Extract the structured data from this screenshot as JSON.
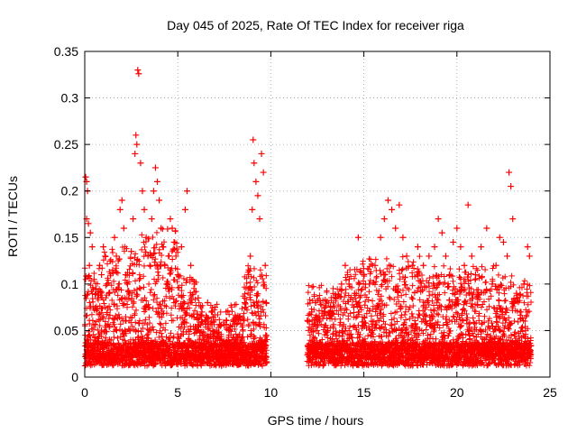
{
  "chart_data": {
    "type": "scatter",
    "title": "Day 045 of 2025, Rate Of TEC Index for receiver riga",
    "xlabel": "GPS time / hours",
    "ylabel": "ROTI / TECUs",
    "xlim": [
      0,
      25
    ],
    "ylim": [
      0,
      0.35
    ],
    "xticks": [
      0,
      5,
      10,
      15,
      20,
      25
    ],
    "xtick_labels": [
      "0",
      "5",
      "10",
      "15",
      "20",
      "25"
    ],
    "yticks": [
      0,
      0.05,
      0.1,
      0.15,
      0.2,
      0.25,
      0.3,
      0.35
    ],
    "ytick_labels": [
      "0",
      "0.05",
      "0.1",
      "0.15",
      "0.2",
      "0.25",
      "0.3",
      "0.35"
    ],
    "grid": true,
    "marker": "+",
    "color": "#ff0000",
    "series": [
      {
        "points": [
          [
            0.05,
            0.215
          ],
          [
            0.1,
            0.21
          ],
          [
            0.15,
            0.2
          ],
          [
            0.1,
            0.17
          ],
          [
            0.2,
            0.165
          ],
          [
            0.3,
            0.155
          ],
          [
            0.4,
            0.14
          ],
          [
            0.25,
            0.12
          ],
          [
            0.5,
            0.105
          ],
          [
            0.6,
            0.095
          ],
          [
            0.7,
            0.085
          ],
          [
            0.8,
            0.12
          ],
          [
            0.9,
            0.11
          ],
          [
            1.0,
            0.14
          ],
          [
            1.1,
            0.13
          ],
          [
            1.2,
            0.1
          ],
          [
            1.3,
            0.09
          ],
          [
            1.5,
            0.115
          ],
          [
            1.6,
            0.15
          ],
          [
            1.7,
            0.13
          ],
          [
            1.8,
            0.125
          ],
          [
            1.9,
            0.18
          ],
          [
            2.0,
            0.19
          ],
          [
            2.1,
            0.16
          ],
          [
            2.2,
            0.11
          ],
          [
            2.3,
            0.1
          ],
          [
            2.4,
            0.09
          ],
          [
            2.5,
            0.135
          ],
          [
            2.6,
            0.17
          ],
          [
            2.7,
            0.24
          ],
          [
            2.75,
            0.26
          ],
          [
            2.8,
            0.25
          ],
          [
            2.85,
            0.33
          ],
          [
            2.9,
            0.326
          ],
          [
            3.0,
            0.23
          ],
          [
            3.1,
            0.2
          ],
          [
            3.2,
            0.18
          ],
          [
            3.3,
            0.15
          ],
          [
            3.4,
            0.13
          ],
          [
            3.5,
            0.12
          ],
          [
            3.6,
            0.17
          ],
          [
            3.7,
            0.2
          ],
          [
            3.8,
            0.225
          ],
          [
            3.9,
            0.21
          ],
          [
            4.0,
            0.19
          ],
          [
            4.1,
            0.16
          ],
          [
            4.2,
            0.14
          ],
          [
            4.3,
            0.12
          ],
          [
            4.4,
            0.1
          ],
          [
            4.5,
            0.13
          ],
          [
            4.6,
            0.17
          ],
          [
            4.7,
            0.16
          ],
          [
            4.8,
            0.145
          ],
          [
            4.9,
            0.13
          ],
          [
            5.0,
            0.11
          ],
          [
            5.2,
            0.14
          ],
          [
            5.4,
            0.18
          ],
          [
            5.5,
            0.2
          ],
          [
            5.7,
            0.12
          ],
          [
            5.9,
            0.1
          ],
          [
            6.1,
            0.085
          ],
          [
            6.3,
            0.07
          ],
          [
            6.6,
            0.08
          ],
          [
            6.8,
            0.06
          ],
          [
            7.0,
            0.075
          ],
          [
            7.3,
            0.055
          ],
          [
            7.6,
            0.07
          ],
          [
            8.0,
            0.06
          ],
          [
            8.3,
            0.065
          ],
          [
            8.6,
            0.08
          ],
          [
            8.8,
            0.11
          ],
          [
            8.9,
            0.13
          ],
          [
            9.0,
            0.18
          ],
          [
            9.05,
            0.255
          ],
          [
            9.1,
            0.23
          ],
          [
            9.2,
            0.21
          ],
          [
            9.3,
            0.195
          ],
          [
            9.4,
            0.17
          ],
          [
            9.5,
            0.24
          ],
          [
            9.6,
            0.22
          ],
          [
            9.7,
            0.12
          ],
          [
            9.75,
            0.08
          ],
          [
            12.0,
            0.06
          ],
          [
            12.2,
            0.07
          ],
          [
            12.4,
            0.08
          ],
          [
            12.6,
            0.065
          ],
          [
            12.9,
            0.07
          ],
          [
            13.2,
            0.075
          ],
          [
            13.5,
            0.085
          ],
          [
            13.8,
            0.1
          ],
          [
            14.0,
            0.12
          ],
          [
            14.2,
            0.1
          ],
          [
            14.5,
            0.09
          ],
          [
            14.7,
            0.15
          ],
          [
            15.0,
            0.11
          ],
          [
            15.3,
            0.1
          ],
          [
            15.6,
            0.12
          ],
          [
            15.9,
            0.15
          ],
          [
            16.1,
            0.17
          ],
          [
            16.3,
            0.19
          ],
          [
            16.5,
            0.18
          ],
          [
            16.7,
            0.16
          ],
          [
            16.9,
            0.185
          ],
          [
            17.1,
            0.15
          ],
          [
            17.3,
            0.13
          ],
          [
            17.6,
            0.12
          ],
          [
            17.9,
            0.14
          ],
          [
            18.2,
            0.12
          ],
          [
            18.5,
            0.13
          ],
          [
            18.8,
            0.14
          ],
          [
            19.0,
            0.17
          ],
          [
            19.2,
            0.155
          ],
          [
            19.4,
            0.13
          ],
          [
            19.6,
            0.11
          ],
          [
            19.8,
            0.145
          ],
          [
            20.0,
            0.16
          ],
          [
            20.2,
            0.14
          ],
          [
            20.4,
            0.12
          ],
          [
            20.6,
            0.185
          ],
          [
            20.8,
            0.13
          ],
          [
            21.0,
            0.11
          ],
          [
            21.3,
            0.14
          ],
          [
            21.6,
            0.16
          ],
          [
            21.9,
            0.1
          ],
          [
            22.1,
            0.12
          ],
          [
            22.3,
            0.15
          ],
          [
            22.5,
            0.145
          ],
          [
            22.7,
            0.13
          ],
          [
            22.8,
            0.22
          ],
          [
            22.9,
            0.205
          ],
          [
            23.0,
            0.17
          ],
          [
            23.2,
            0.09
          ],
          [
            23.4,
            0.07
          ],
          [
            23.6,
            0.1
          ],
          [
            23.8,
            0.14
          ],
          [
            23.9,
            0.13
          ]
        ]
      }
    ]
  }
}
